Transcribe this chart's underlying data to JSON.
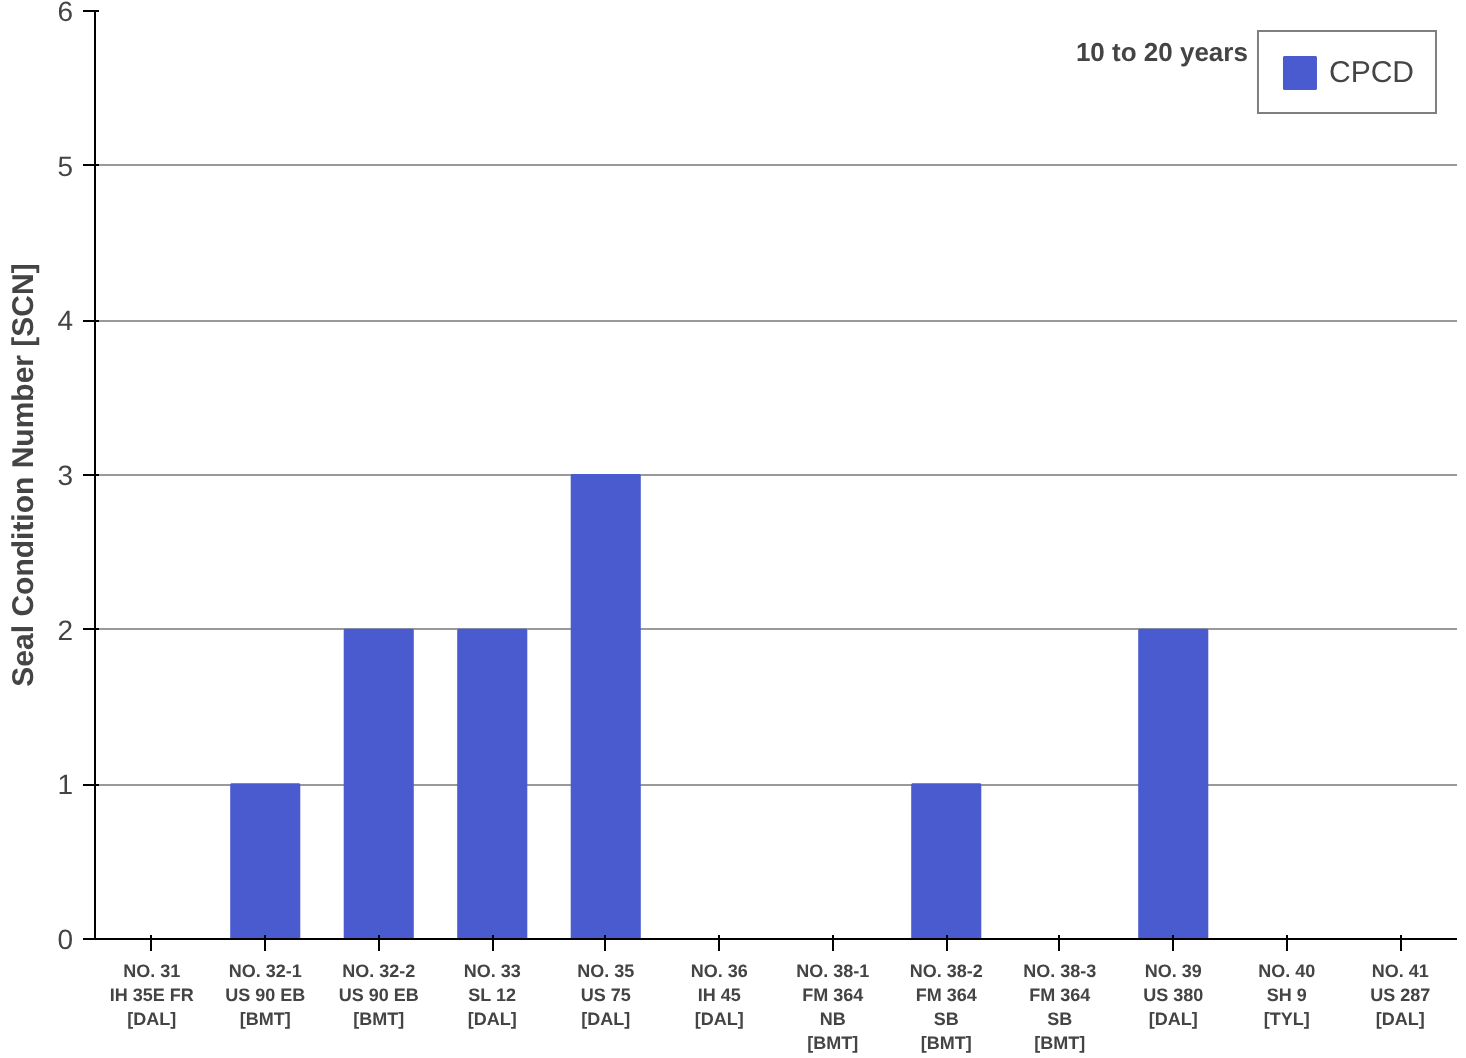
{
  "chart_data": {
    "type": "bar",
    "ylabel": "Seal Condition Number [SCN]",
    "categories": [
      "NO. 31\nIH 35E FR\n[DAL]",
      "NO. 32-1\nUS 90 EB\n[BMT]",
      "NO. 32-2\nUS 90 EB\n[BMT]",
      "NO. 33\nSL 12\n[DAL]",
      "NO. 35\nUS 75\n[DAL]",
      "NO. 36\nIH 45\n[DAL]",
      "NO. 38-1\nFM 364\nNB\n[BMT]",
      "NO. 38-2\nFM 364\nSB\n[BMT]",
      "NO. 38-3\nFM 364\nSB\n[BMT]",
      "NO. 39\nUS 380\n[DAL]",
      "NO. 40\nSH 9\n[TYL]",
      "NO. 41\nUS 287\n[DAL]"
    ],
    "series": [
      {
        "name": "CPCD",
        "color": "#4a5bcf",
        "values": [
          0,
          1,
          2,
          2,
          3,
          0,
          0,
          1,
          0,
          2,
          0,
          0
        ]
      }
    ],
    "ylim": [
      0,
      6
    ],
    "yticks": [
      0,
      1,
      2,
      3,
      4,
      5,
      6
    ],
    "grid": "y",
    "legend": "top right",
    "annotations": [
      "10 to 20 years"
    ]
  }
}
